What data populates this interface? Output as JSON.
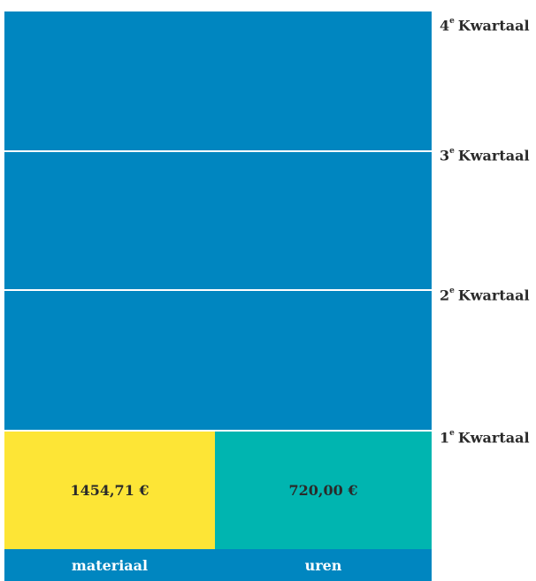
{
  "chart_data": {
    "type": "bar",
    "categories": [
      "materiaal",
      "uren"
    ],
    "values": [
      "1454,71 €",
      "720,00 €"
    ],
    "quarter_labels": [
      {
        "num": "4",
        "sup": "e",
        "text": "Kwartaal"
      },
      {
        "num": "3",
        "sup": "e",
        "text": "Kwartaal"
      },
      {
        "num": "2",
        "sup": "e",
        "text": "Kwartaal"
      },
      {
        "num": "1",
        "sup": "e",
        "text": "Kwartaal"
      }
    ],
    "colors": {
      "quarters": "#0086c0",
      "materiaal": "#fde536",
      "uren": "#00b5b0"
    }
  }
}
